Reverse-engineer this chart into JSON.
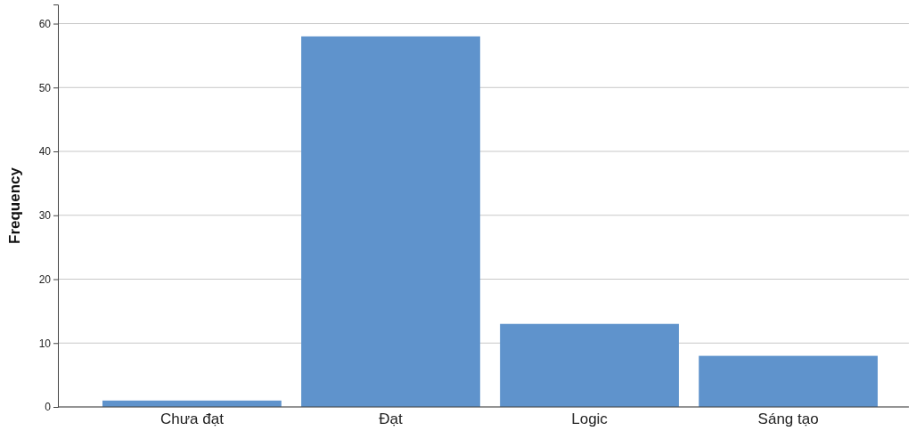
{
  "chart_data": {
    "type": "bar",
    "ylabel": "Frequency",
    "categories": [
      "Chưa đạt",
      "Đạt",
      "Logic",
      "Sáng tạo"
    ],
    "values": [
      1,
      58,
      13,
      8
    ],
    "color": "#5f93cc",
    "ylim": [
      0,
      63
    ],
    "yticks": [
      0,
      10,
      20,
      30,
      40,
      50,
      60
    ],
    "grid": "y"
  }
}
